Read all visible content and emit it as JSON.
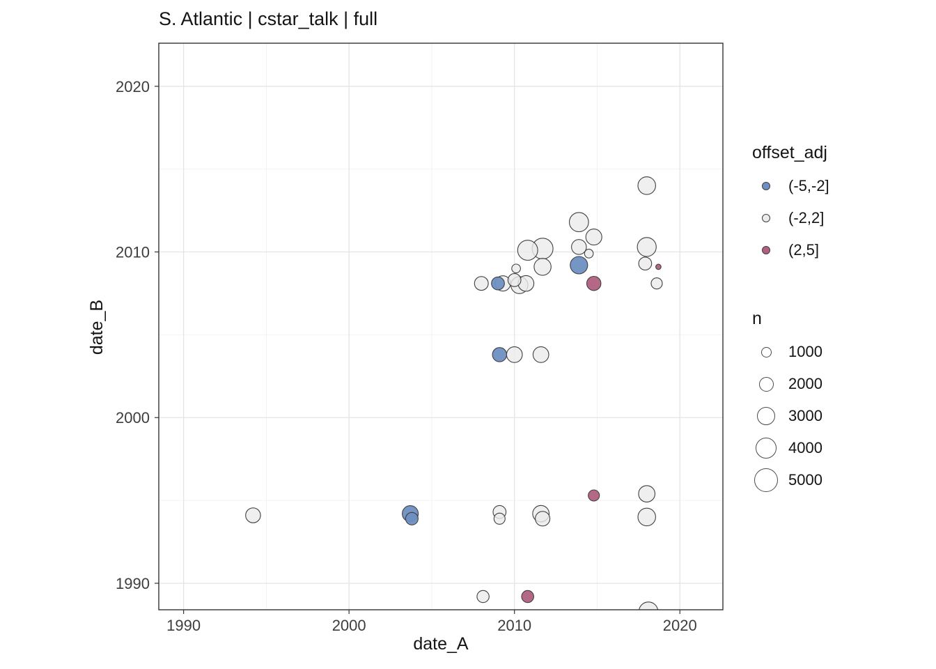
{
  "chart_data": {
    "type": "scatter",
    "title": "S. Atlantic | cstar_talk | full",
    "xlabel": "date_A",
    "ylabel": "date_B",
    "xlim": [
      1988.5,
      2022.6
    ],
    "ylim": [
      1988.4,
      2022.6
    ],
    "x_ticks": [
      1990,
      2000,
      2010,
      2020
    ],
    "y_ticks": [
      1990,
      2000,
      2010,
      2020
    ],
    "minor_ticks": [
      1995,
      2005,
      2015
    ],
    "grid": true,
    "legend_position": "right",
    "size_scale": {
      "factor": 0.24
    },
    "series_colors": {
      "(-5,-2]": "#6e8fc1",
      "(-2,2]": "#ebebeb",
      "(2,5]": "#b0607f"
    },
    "legends": {
      "offset": {
        "title": "offset_adj",
        "items": [
          {
            "label": "(-5,-2]",
            "color": "#6e8fc1"
          },
          {
            "label": "(-2,2]",
            "color": "#ebebeb"
          },
          {
            "label": "(2,5]",
            "color": "#b0607f"
          }
        ]
      },
      "size": {
        "title": "n",
        "items": [
          1000,
          2000,
          3000,
          4000,
          5000
        ]
      }
    },
    "points": [
      {
        "x": 1994.2,
        "y": 1994.1,
        "n": 2000,
        "offset_adj": "(-2,2]"
      },
      {
        "x": 2003.7,
        "y": 1994.2,
        "n": 2300,
        "offset_adj": "(-5,-2]"
      },
      {
        "x": 2003.8,
        "y": 1993.9,
        "n": 1400,
        "offset_adj": "(-5,-2]"
      },
      {
        "x": 2009.1,
        "y": 1994.3,
        "n": 1500,
        "offset_adj": "(-2,2]"
      },
      {
        "x": 2009.1,
        "y": 1993.9,
        "n": 1100,
        "offset_adj": "(-2,2]"
      },
      {
        "x": 2011.6,
        "y": 1994.2,
        "n": 2400,
        "offset_adj": "(-2,2]"
      },
      {
        "x": 2011.7,
        "y": 1993.9,
        "n": 1900,
        "offset_adj": "(-2,2]"
      },
      {
        "x": 2014.8,
        "y": 1995.3,
        "n": 1100,
        "offset_adj": "(2,5]"
      },
      {
        "x": 2018.0,
        "y": 1995.4,
        "n": 2400,
        "offset_adj": "(-2,2]"
      },
      {
        "x": 2018.0,
        "y": 1994.0,
        "n": 2800,
        "offset_adj": "(-2,2]"
      },
      {
        "x": 2008.1,
        "y": 1989.2,
        "n": 1300,
        "offset_adj": "(-2,2]"
      },
      {
        "x": 2010.8,
        "y": 1989.2,
        "n": 1300,
        "offset_adj": "(2,5]"
      },
      {
        "x": 2018.1,
        "y": 1988.3,
        "n": 3200,
        "offset_adj": "(-2,2]"
      },
      {
        "x": 2009.1,
        "y": 2003.8,
        "n": 1800,
        "offset_adj": "(-5,-2]"
      },
      {
        "x": 2010.0,
        "y": 2003.8,
        "n": 2200,
        "offset_adj": "(-2,2]"
      },
      {
        "x": 2011.6,
        "y": 2003.8,
        "n": 2200,
        "offset_adj": "(-2,2]"
      },
      {
        "x": 2008.0,
        "y": 2008.1,
        "n": 1700,
        "offset_adj": "(-2,2]"
      },
      {
        "x": 2009.0,
        "y": 2008.1,
        "n": 1500,
        "offset_adj": "(-5,-2]"
      },
      {
        "x": 2009.3,
        "y": 2008.1,
        "n": 2100,
        "offset_adj": "(-2,2]"
      },
      {
        "x": 2010.0,
        "y": 2008.3,
        "n": 1500,
        "offset_adj": "(-2,2]"
      },
      {
        "x": 2010.3,
        "y": 2008.0,
        "n": 2600,
        "offset_adj": "(-2,2]"
      },
      {
        "x": 2010.7,
        "y": 2008.1,
        "n": 2200,
        "offset_adj": "(-2,2]"
      },
      {
        "x": 2010.1,
        "y": 2009.0,
        "n": 700,
        "offset_adj": "(-2,2]"
      },
      {
        "x": 2010.8,
        "y": 2010.1,
        "n": 3600,
        "offset_adj": "(-2,2]"
      },
      {
        "x": 2011.7,
        "y": 2010.2,
        "n": 3900,
        "offset_adj": "(-2,2]"
      },
      {
        "x": 2011.7,
        "y": 2009.1,
        "n": 2600,
        "offset_adj": "(-2,2]"
      },
      {
        "x": 2013.9,
        "y": 2011.8,
        "n": 3300,
        "offset_adj": "(-2,2]"
      },
      {
        "x": 2013.9,
        "y": 2010.3,
        "n": 2000,
        "offset_adj": "(-2,2]"
      },
      {
        "x": 2013.9,
        "y": 2009.2,
        "n": 2700,
        "offset_adj": "(-5,-2]"
      },
      {
        "x": 2014.8,
        "y": 2010.9,
        "n": 2300,
        "offset_adj": "(-2,2]"
      },
      {
        "x": 2014.5,
        "y": 2009.9,
        "n": 700,
        "offset_adj": "(-2,2]"
      },
      {
        "x": 2014.8,
        "y": 2008.1,
        "n": 1800,
        "offset_adj": "(2,5]"
      },
      {
        "x": 2018.0,
        "y": 2014.0,
        "n": 2800,
        "offset_adj": "(-2,2]"
      },
      {
        "x": 2018.0,
        "y": 2010.3,
        "n": 3200,
        "offset_adj": "(-2,2]"
      },
      {
        "x": 2017.9,
        "y": 2009.3,
        "n": 1500,
        "offset_adj": "(-2,2]"
      },
      {
        "x": 2018.7,
        "y": 2009.1,
        "n": 250,
        "offset_adj": "(2,5]"
      },
      {
        "x": 2018.6,
        "y": 2008.1,
        "n": 1100,
        "offset_adj": "(-2,2]"
      }
    ]
  },
  "colors": {
    "stroke": "#3f3f3f",
    "grid_major": "#e4e4e4",
    "grid_minor": "#f2f2f2",
    "panel_border": "#333333",
    "axis_text": "#3d3d3d",
    "text": "#141414"
  }
}
